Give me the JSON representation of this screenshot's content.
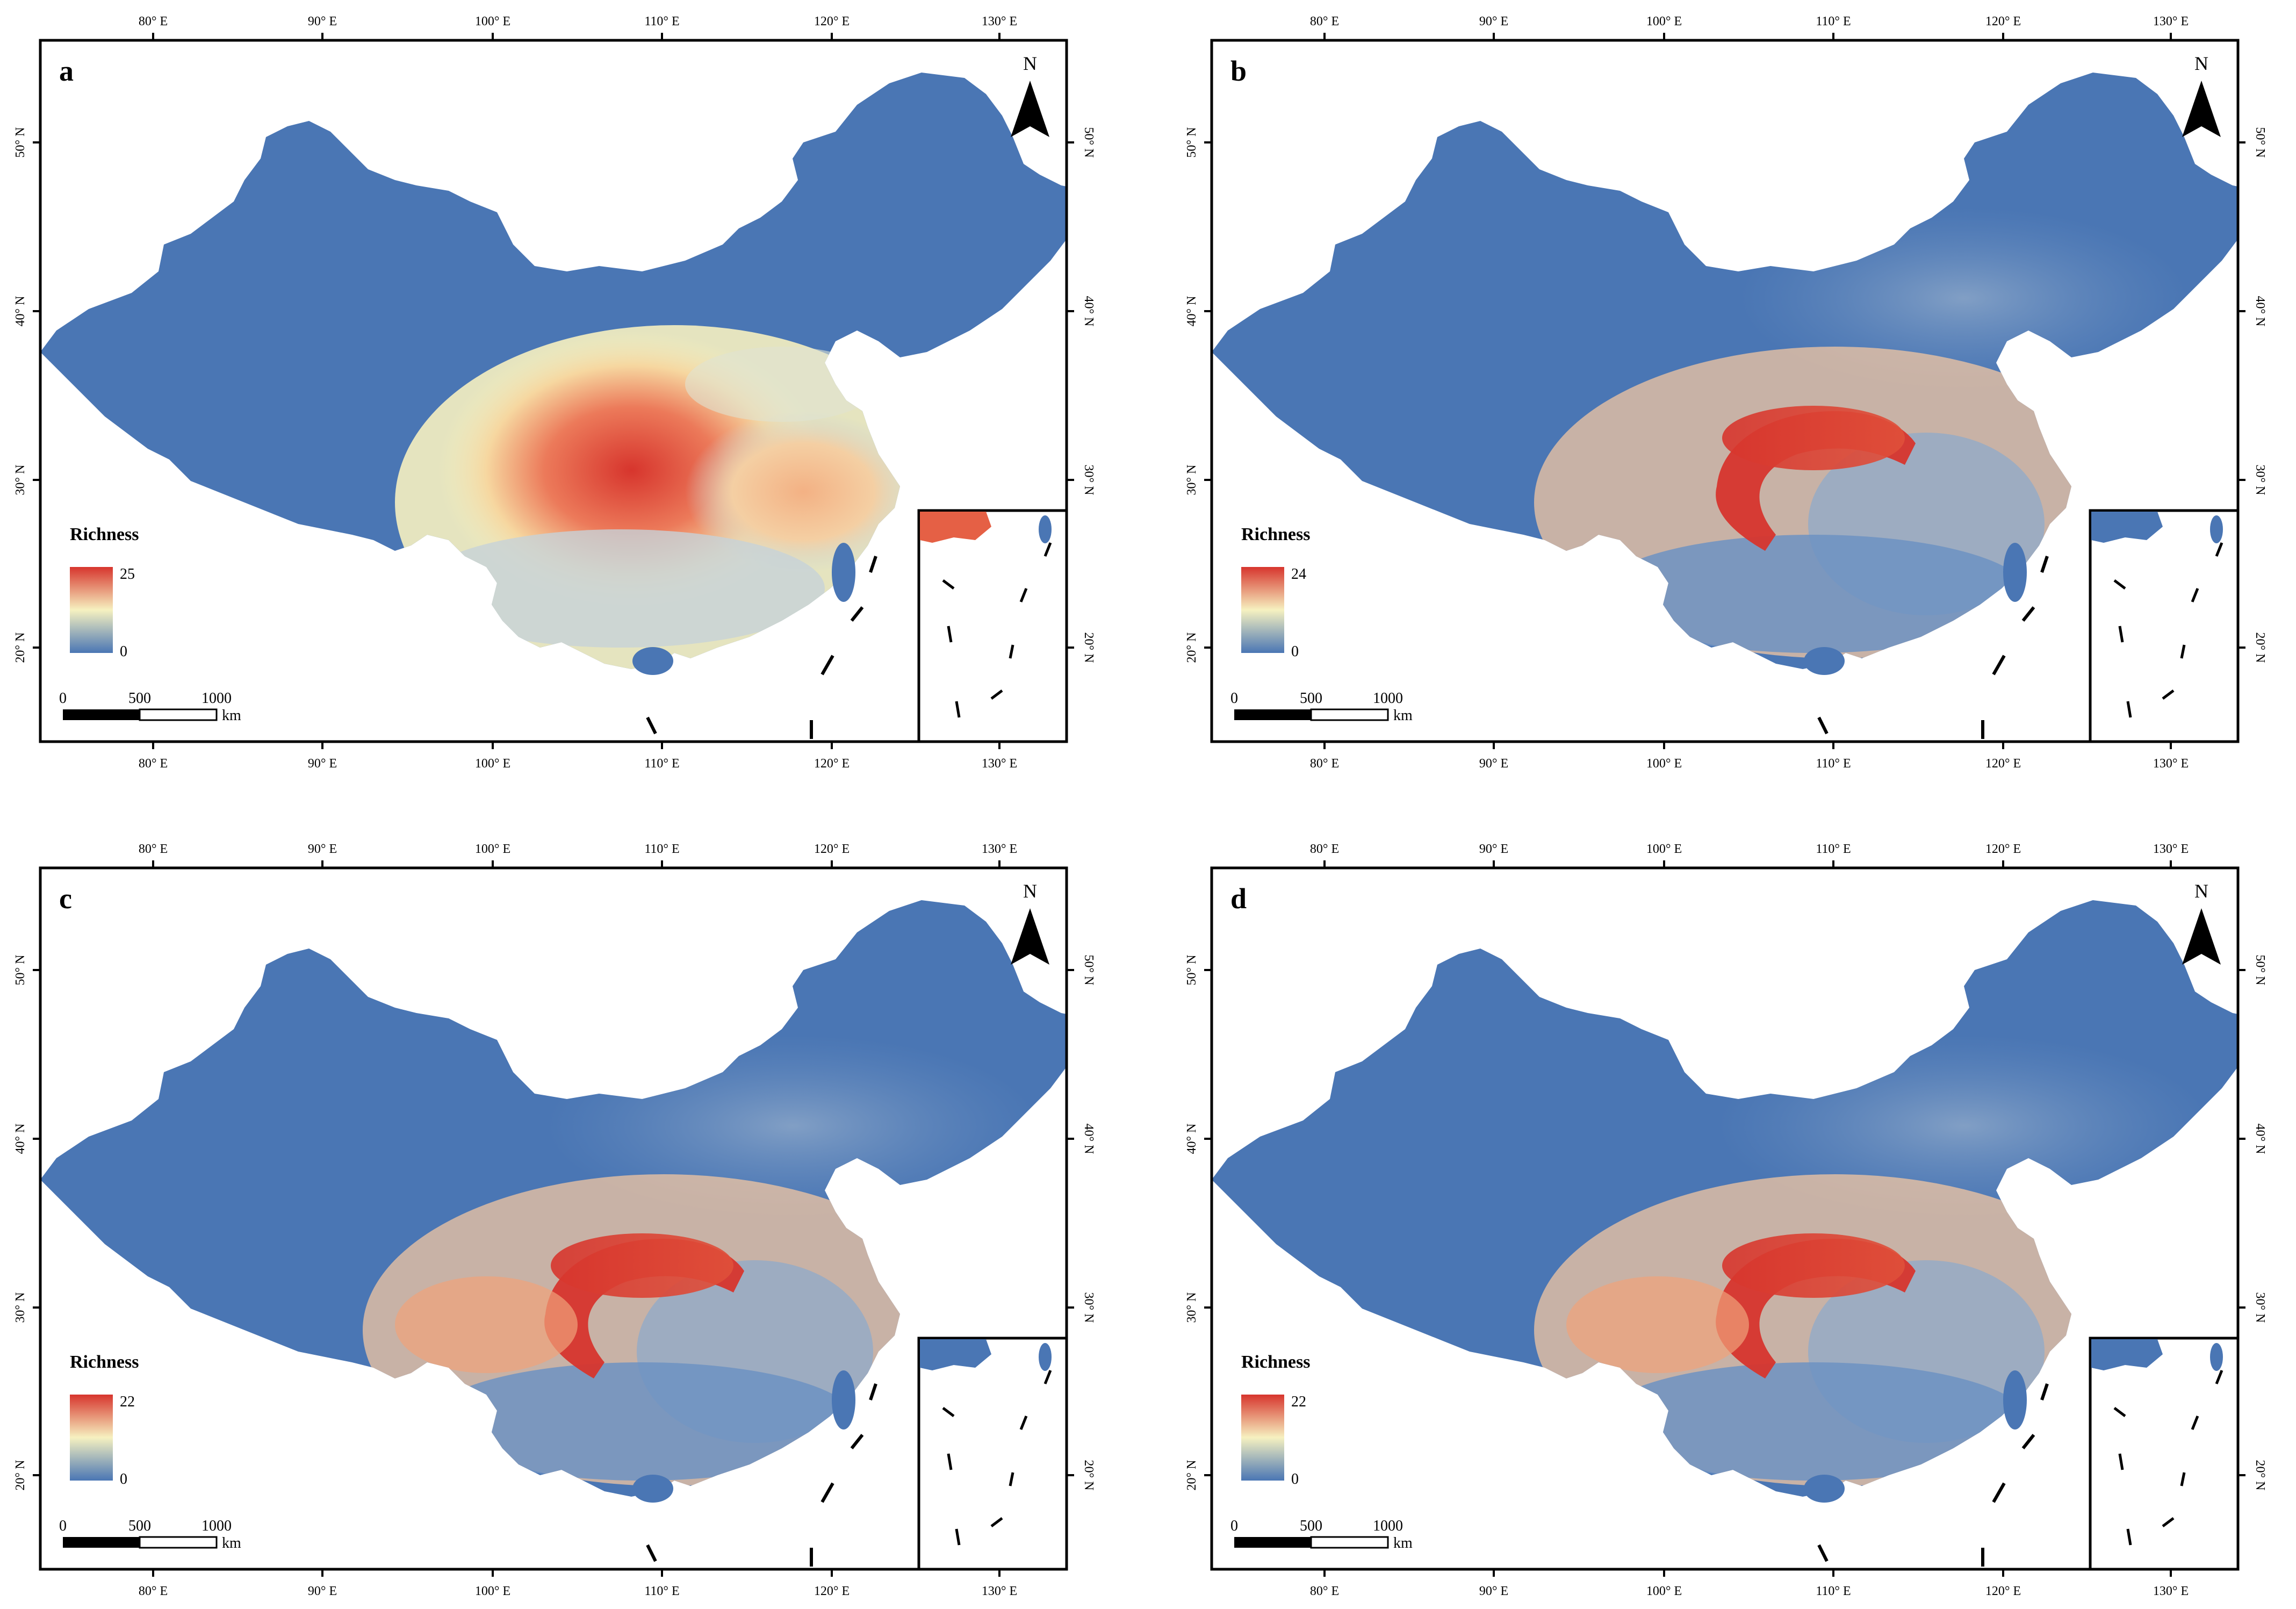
{
  "figure": {
    "lon_ticks": [
      "80° E",
      "90° E",
      "100° E",
      "110° E",
      "120° E",
      "130° E"
    ],
    "lat_ticks": [
      "50° N",
      "40° N",
      "30° N",
      "20° N"
    ],
    "north_label": "N",
    "legend_title": "Richness",
    "scale_labels": [
      "0",
      "500",
      "1000"
    ],
    "scale_unit": "km",
    "colors": {
      "low": "#4a76b4",
      "mid": "#f6f1c0",
      "high": "#d7352d",
      "frame": "#000000"
    },
    "panels": [
      {
        "label": "a",
        "legend_max": "25",
        "legend_min": "0"
      },
      {
        "label": "b",
        "legend_max": "24",
        "legend_min": "0"
      },
      {
        "label": "c",
        "legend_max": "22",
        "legend_min": "0"
      },
      {
        "label": "d",
        "legend_max": "22",
        "legend_min": "0"
      }
    ]
  }
}
